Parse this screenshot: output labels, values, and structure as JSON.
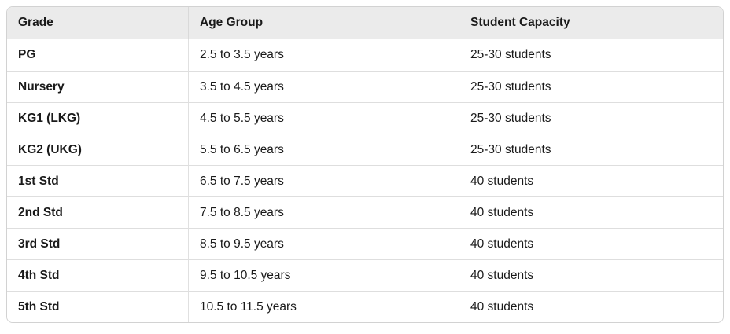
{
  "table": {
    "name": "grade-age-capacity-table",
    "columns": [
      {
        "key": "grade",
        "label": "Grade"
      },
      {
        "key": "age",
        "label": "Age Group"
      },
      {
        "key": "capacity",
        "label": "Student Capacity"
      }
    ],
    "rows": [
      {
        "grade": "PG",
        "age": "2.5 to 3.5 years",
        "capacity": "25-30 students"
      },
      {
        "grade": "Nursery",
        "age": "3.5 to 4.5 years",
        "capacity": "25-30 students"
      },
      {
        "grade": "KG1 (LKG)",
        "age": "4.5 to 5.5 years",
        "capacity": "25-30 students"
      },
      {
        "grade": "KG2 (UKG)",
        "age": "5.5 to 6.5 years",
        "capacity": "25-30 students"
      },
      {
        "grade": "1st Std",
        "age": "6.5 to 7.5 years",
        "capacity": "40 students"
      },
      {
        "grade": "2nd Std",
        "age": "7.5 to 8.5 years",
        "capacity": "40 students"
      },
      {
        "grade": "3rd Std",
        "age": "8.5 to 9.5 years",
        "capacity": "40 students"
      },
      {
        "grade": "4th Std",
        "age": "9.5 to 10.5 years",
        "capacity": "40 students"
      },
      {
        "grade": "5th Std",
        "age": "10.5 to 11.5 years",
        "capacity": "40 students"
      }
    ],
    "colors": {
      "header_bg": "#ebebeb",
      "row_bg": "#ffffff",
      "border": "#d9d9d9",
      "outer_border": "#d2d2d2",
      "text": "#1a1a1a"
    }
  }
}
